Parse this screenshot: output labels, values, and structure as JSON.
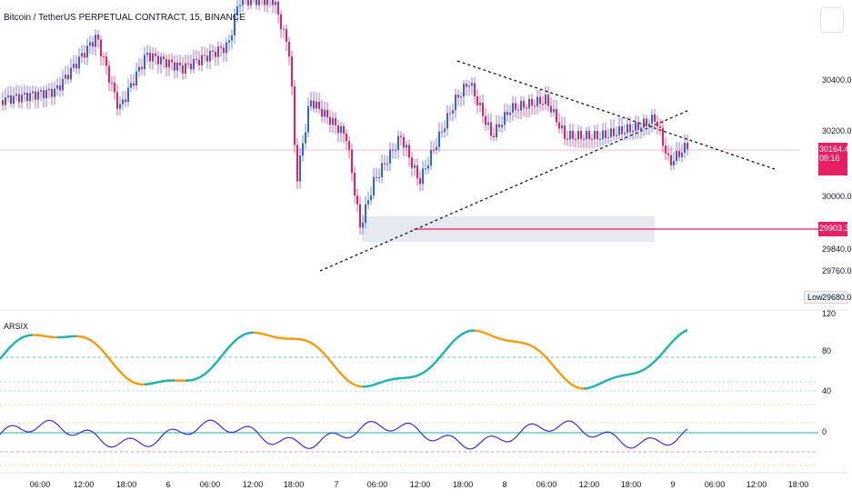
{
  "symbol_title": "Bitcoin / TetherUS PERPETUAL CONTRACT, 15, BINANCE",
  "indicator_name": "ARSIX",
  "price_axis": [
    "30400.0",
    "30200.0",
    "30000.0",
    "29840.0",
    "29760.0",
    "29680.0"
  ],
  "current_price": {
    "value": "30164.4",
    "countdown": "08:16",
    "color": "#e91e63"
  },
  "level_price": {
    "value": "29903.3",
    "color": "#e91e63"
  },
  "low_label": {
    "label": "Low",
    "value": "29680.0"
  },
  "indicator_axis": [
    "120",
    "80",
    "40",
    "0"
  ],
  "time_axis": [
    "06:00",
    "12:00",
    "18:00",
    "6",
    "06:00",
    "12:00",
    "18:00",
    "7",
    "06:00",
    "12:00",
    "18:00",
    "8",
    "06:00",
    "12:00",
    "18:00",
    "9",
    "06:00",
    "12:00",
    "18:00"
  ],
  "colors": {
    "up": "#2962ff",
    "down": "#e91e63",
    "rsi_up": "#20b2aa",
    "rsi_down": "#f39c12",
    "osc": "#3c2fd1"
  }
}
